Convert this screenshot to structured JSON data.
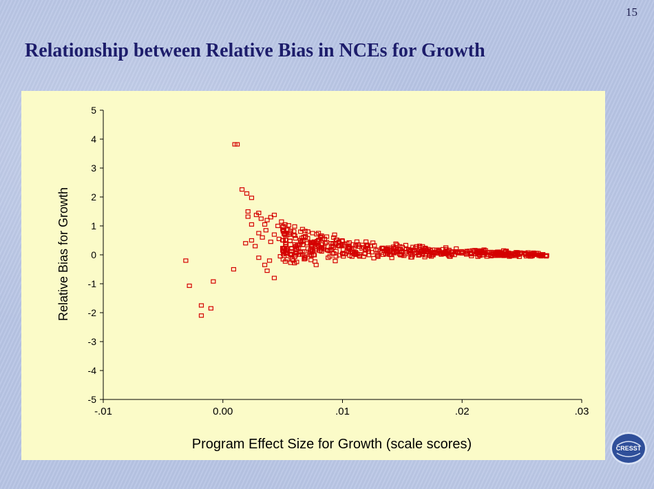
{
  "page_number": "15",
  "slide_title": "Relationship between Relative Bias in NCEs for Growth",
  "logo_text": "CRESST",
  "colors": {
    "marker": "#d40000",
    "panel_bg": "#fbfbc8",
    "title": "#1d1d6b"
  },
  "chart_data": {
    "type": "scatter",
    "title": "",
    "xlabel": "Program Effect Size for Growth (scale scores)",
    "ylabel": "Relative Bias for Growth",
    "xlim": [
      -0.01,
      0.03
    ],
    "ylim": [
      -5,
      5
    ],
    "x_ticks": [
      {
        "value": -0.01,
        "label": "-.01"
      },
      {
        "value": 0.0,
        "label": "0.00"
      },
      {
        "value": 0.01,
        "label": ".01"
      },
      {
        "value": 0.02,
        "label": ".02"
      },
      {
        "value": 0.03,
        "label": ".03"
      }
    ],
    "y_ticks": [
      5,
      4,
      3,
      2,
      1,
      0,
      -1,
      -2,
      -3,
      -4,
      -5
    ],
    "grid": false,
    "marker": "open-square",
    "points": [
      [
        -0.0031,
        -0.2
      ],
      [
        -0.0028,
        -1.07
      ],
      [
        -0.0018,
        -1.75
      ],
      [
        -0.0018,
        -2.1
      ],
      [
        -0.001,
        -1.85
      ],
      [
        -0.0008,
        -0.92
      ],
      [
        0.001,
        3.82
      ],
      [
        0.0012,
        3.82
      ],
      [
        0.0009,
        -0.5
      ],
      [
        0.0016,
        2.26
      ],
      [
        0.002,
        2.12
      ],
      [
        0.0024,
        1.97
      ],
      [
        0.0021,
        1.5
      ],
      [
        0.0021,
        1.32
      ],
      [
        0.0024,
        1.05
      ],
      [
        0.0028,
        1.38
      ],
      [
        0.003,
        1.45
      ],
      [
        0.0032,
        1.25
      ],
      [
        0.0035,
        1.05
      ],
      [
        0.0037,
        1.2
      ],
      [
        0.004,
        1.3
      ],
      [
        0.0043,
        1.38
      ],
      [
        0.0046,
        1.0
      ],
      [
        0.0049,
        1.15
      ],
      [
        0.0052,
        1.05
      ],
      [
        0.0055,
        1.02
      ],
      [
        0.006,
        0.98
      ],
      [
        0.0065,
        0.8
      ],
      [
        0.0075,
        0.75
      ],
      [
        0.0085,
        0.55
      ],
      [
        0.0019,
        0.4
      ],
      [
        0.0024,
        0.5
      ],
      [
        0.0027,
        0.3
      ],
      [
        0.003,
        0.75
      ],
      [
        0.0033,
        0.6
      ],
      [
        0.0036,
        0.85
      ],
      [
        0.004,
        0.45
      ],
      [
        0.0043,
        0.7
      ],
      [
        0.0047,
        0.55
      ],
      [
        0.003,
        -0.1
      ],
      [
        0.0035,
        -0.35
      ],
      [
        0.0037,
        -0.55
      ],
      [
        0.0039,
        -0.2
      ],
      [
        0.0043,
        -0.8
      ],
      [
        0.0048,
        -0.05
      ],
      [
        0.0053,
        0.05
      ],
      [
        0.0058,
        -0.15
      ],
      [
        0.0068,
        -0.15
      ],
      [
        0.0078,
        -0.35
      ],
      [
        0.0088,
        -0.1
      ]
    ],
    "band": [
      {
        "x": 0.005,
        "center": 0.35,
        "spread": 0.75
      },
      {
        "x": 0.007,
        "center": 0.3,
        "spread": 0.6
      },
      {
        "x": 0.009,
        "center": 0.25,
        "spread": 0.48
      },
      {
        "x": 0.011,
        "center": 0.2,
        "spread": 0.38
      },
      {
        "x": 0.013,
        "center": 0.15,
        "spread": 0.3
      },
      {
        "x": 0.016,
        "center": 0.12,
        "spread": 0.24
      },
      {
        "x": 0.019,
        "center": 0.08,
        "spread": 0.2
      },
      {
        "x": 0.022,
        "center": 0.05,
        "spread": 0.15
      },
      {
        "x": 0.025,
        "center": 0.02,
        "spread": 0.1
      },
      {
        "x": 0.0272,
        "center": 0.0,
        "spread": 0.06
      }
    ],
    "band_points": 560
  }
}
